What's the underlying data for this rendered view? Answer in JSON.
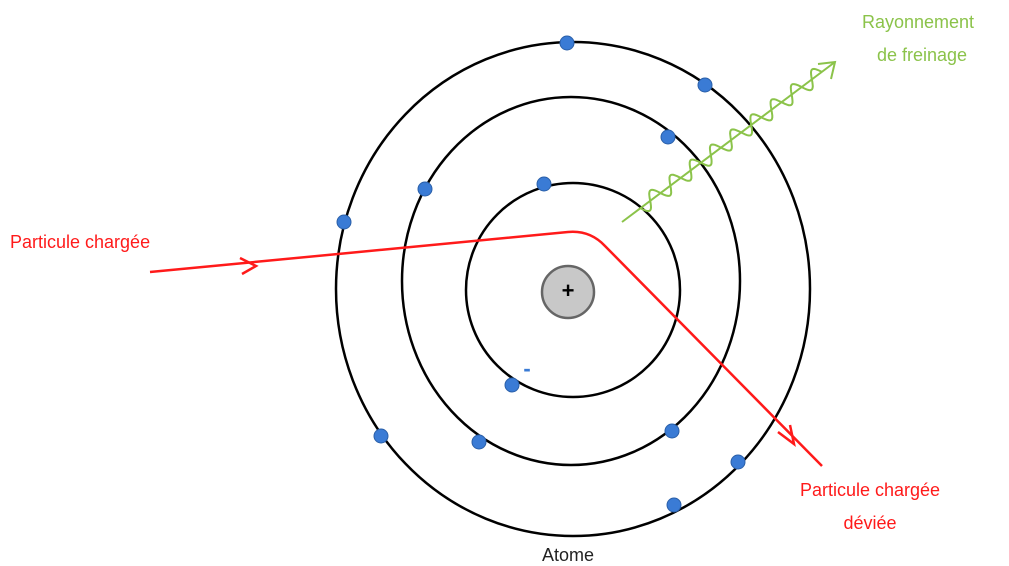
{
  "labels": {
    "radiation": [
      "Rayonnement",
      "de freinage"
    ],
    "incoming_particle": "Particule chargée",
    "deflected_particle": [
      "Particule chargée",
      "déviée"
    ],
    "atom": "Atome",
    "nucleus": "+",
    "electron": "-"
  }
}
